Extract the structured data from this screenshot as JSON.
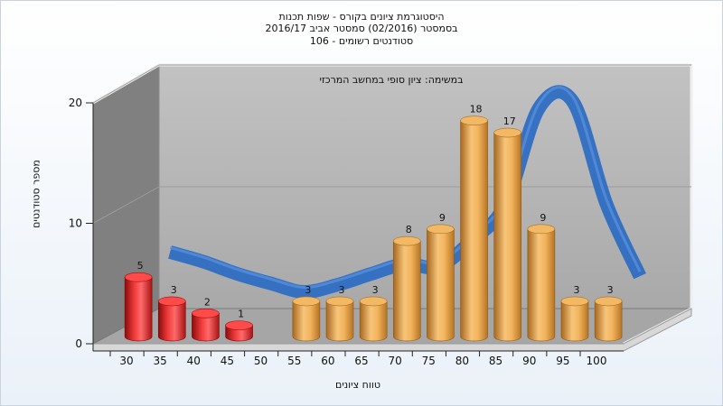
{
  "chart_data": {
    "type": "bar",
    "title_lines": [
      "היסטוגרמת ציונים בקורס - שפות תכנות",
      "בסמסטר  (02/2016)  סמסטר אביב 2016/17",
      "106 - סטודנטים רשומים"
    ],
    "subtitle": "במשימה: ציון סופי במחשב המרכזי",
    "xlabel": "טווח ציונים",
    "ylabel": "מספר סטודנטים",
    "ylim": [
      0,
      20
    ],
    "yticks": [
      0,
      10,
      20
    ],
    "categories": [
      "30",
      "35",
      "40",
      "45",
      "50",
      "55",
      "60",
      "65",
      "70",
      "75",
      "80",
      "85",
      "90",
      "95",
      "100"
    ],
    "values": [
      5,
      3,
      2,
      1,
      null,
      3,
      3,
      3,
      8,
      9,
      18,
      17,
      9,
      3,
      3
    ],
    "data_labels": [
      "5",
      "3",
      "2",
      "1",
      "",
      "3",
      "3",
      "3",
      "8",
      "9",
      "18",
      "17",
      "9",
      "3",
      "3"
    ],
    "bar_colors": [
      "red",
      "red",
      "red",
      "red",
      "",
      "orange",
      "orange",
      "orange",
      "orange",
      "orange",
      "orange",
      "orange",
      "orange",
      "orange",
      "orange"
    ],
    "trend_curve": [
      6,
      5.2,
      4.2,
      3.4,
      2.7,
      3.3,
      4.2,
      5,
      4.8,
      7,
      10,
      18,
      18.5,
      10,
      4
    ],
    "colors": {
      "red_bar": "#e02020",
      "orange_bar": "#e9a24a",
      "trend": "#2f6ec2",
      "back_wall": "#b4b4b4",
      "side_wall": "#808080",
      "floor": "#a6a6a6"
    },
    "grid": true
  }
}
